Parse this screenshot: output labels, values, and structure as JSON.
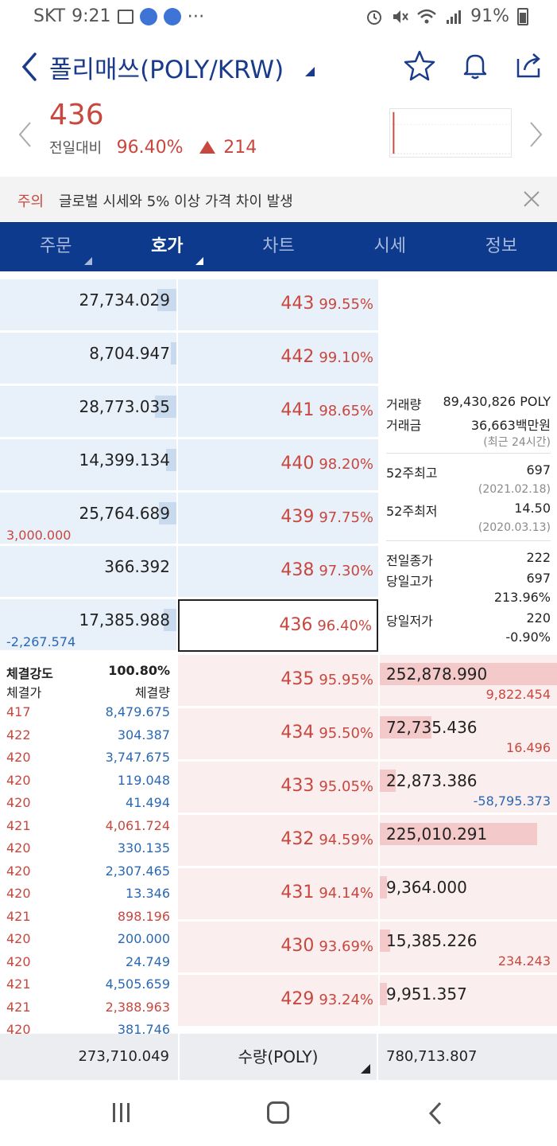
{
  "status": {
    "carrier": "SKT",
    "time": "9:21",
    "battery": "91%",
    "dots": "⋯"
  },
  "header": {
    "title": "폴리매쓰(POLY/KRW)"
  },
  "price": {
    "current": "436",
    "label": "전일대비",
    "change_pct": "96.40%",
    "change_amt": "214"
  },
  "notice": {
    "tag": "주의",
    "message": "글로벌 시세와 5% 이상 가격 차이 발생"
  },
  "tabs": [
    {
      "label": "주문"
    },
    {
      "label": "호가"
    },
    {
      "label": "차트"
    },
    {
      "label": "시세"
    },
    {
      "label": "정보"
    }
  ],
  "asks": [
    {
      "qty": "27,734.029",
      "price": "443",
      "rate": "99.55%",
      "bar": 0.11,
      "sub": ""
    },
    {
      "qty": "8,704.947",
      "price": "442",
      "rate": "99.10%",
      "bar": 0.03,
      "sub": ""
    },
    {
      "qty": "28,773.035",
      "price": "441",
      "rate": "98.65%",
      "bar": 0.12,
      "sub": ""
    },
    {
      "qty": "14,399.134",
      "price": "440",
      "rate": "98.20%",
      "bar": 0.06,
      "sub": ""
    },
    {
      "qty": "25,764.689",
      "price": "439",
      "rate": "97.75%",
      "bar": 0.1,
      "sub": "3,000.000"
    },
    {
      "qty": "366.392",
      "price": "438",
      "rate": "97.30%",
      "bar": 0.0,
      "sub": ""
    },
    {
      "qty": "17,385.988",
      "price": "436",
      "rate": "96.40%",
      "bar": 0.07,
      "sub": "-2,267.574"
    }
  ],
  "bids": [
    {
      "price": "435",
      "rate": "95.95%",
      "qty": "252,878.990",
      "bar": 1.0,
      "sub": "9,822.454",
      "sub_color": "red"
    },
    {
      "price": "434",
      "rate": "95.50%",
      "qty": "72,735.436",
      "bar": 0.29,
      "sub": "16.496",
      "sub_color": "red"
    },
    {
      "price": "433",
      "rate": "95.05%",
      "qty": "22,873.386",
      "bar": 0.09,
      "sub": "-58,795.373",
      "sub_color": "blue"
    },
    {
      "price": "432",
      "rate": "94.59%",
      "qty": "225,010.291",
      "bar": 0.89,
      "sub": "",
      "sub_color": "red"
    },
    {
      "price": "431",
      "rate": "94.14%",
      "qty": "9,364.000",
      "bar": 0.04,
      "sub": "",
      "sub_color": "red"
    },
    {
      "price": "430",
      "rate": "93.69%",
      "qty": "15,385.226",
      "bar": 0.06,
      "sub": "234.243",
      "sub_color": "red"
    },
    {
      "price": "429",
      "rate": "93.24%",
      "qty": "9,951.357",
      "bar": 0.04,
      "sub": "",
      "sub_color": "red"
    }
  ],
  "info": {
    "volume_label": "거래량",
    "volume_value": "89,430,826 POLY",
    "amount_label": "거래금",
    "amount_value": "36,663백만원",
    "recent_note": "(최근 24시간)",
    "high52_label": "52주최고",
    "high52_value": "697",
    "high52_date": "(2021.02.18)",
    "low52_label": "52주최저",
    "low52_value": "14.50",
    "low52_date": "(2020.03.13)",
    "prev_close_label": "전일종가",
    "prev_close_value": "222",
    "day_high_label": "당일고가",
    "day_high_value": "697",
    "day_high_pct": "213.96%",
    "day_low_label": "당일저가",
    "day_low_value": "220",
    "day_low_pct": "-0.90%"
  },
  "trades": {
    "strength_label": "체결강도",
    "strength_value": "100.80%",
    "price_header": "체결가",
    "qty_header": "체결량",
    "rows": [
      {
        "price": "417",
        "qty": "8,479.675",
        "side": "blue"
      },
      {
        "price": "422",
        "qty": "304.387",
        "side": "blue"
      },
      {
        "price": "420",
        "qty": "3,747.675",
        "side": "blue"
      },
      {
        "price": "420",
        "qty": "119.048",
        "side": "blue"
      },
      {
        "price": "420",
        "qty": "41.494",
        "side": "blue"
      },
      {
        "price": "421",
        "qty": "4,061.724",
        "side": "red"
      },
      {
        "price": "420",
        "qty": "330.135",
        "side": "blue"
      },
      {
        "price": "420",
        "qty": "2,307.465",
        "side": "blue"
      },
      {
        "price": "420",
        "qty": "13.346",
        "side": "blue"
      },
      {
        "price": "421",
        "qty": "898.196",
        "side": "red"
      },
      {
        "price": "420",
        "qty": "200.000",
        "side": "blue"
      },
      {
        "price": "420",
        "qty": "24.749",
        "side": "blue"
      },
      {
        "price": "421",
        "qty": "4,505.659",
        "side": "blue"
      },
      {
        "price": "421",
        "qty": "2,388.963",
        "side": "red"
      },
      {
        "price": "420",
        "qty": "381.746",
        "side": "blue"
      }
    ]
  },
  "totals": {
    "ask_total": "273,710.049",
    "unit_label": "수량(POLY)",
    "bid_total": "780,713.807"
  },
  "colors": {
    "accent": "#0d3a8d",
    "up": "#c8473e",
    "down": "#2a68b4",
    "ask_bg": "#e8f0f9",
    "bid_bg": "#fbeeee"
  }
}
